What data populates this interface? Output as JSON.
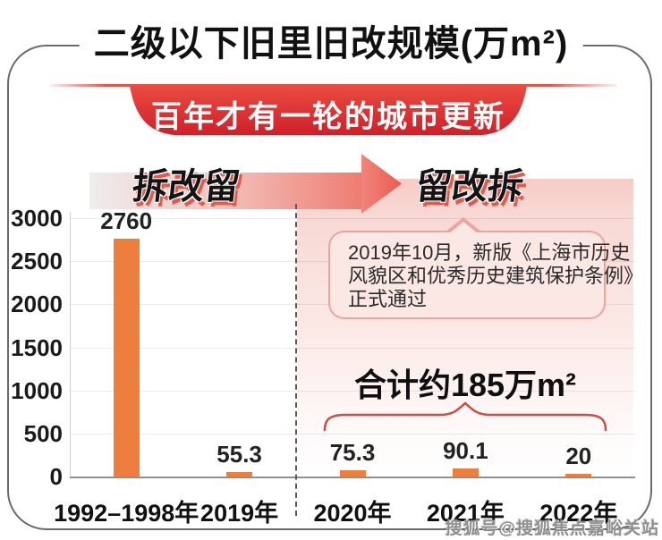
{
  "title": "二级以下旧里旧改规模(万m²)",
  "banner": "百年才有一轮的城市更新",
  "eras": {
    "left": "拆改留",
    "right": "留改拆"
  },
  "annotation": {
    "lines": [
      "2019年10月，新版《上海市历史",
      "风貌区和优秀历史建筑保护条例》",
      "正式通过"
    ]
  },
  "total_label": "合计约185万m²",
  "watermark": "搜狐号@搜狐焦点嘉峪关站",
  "colors": {
    "bar": "#EE7E3E",
    "banner_red_top": "#EA4B42",
    "banner_red_bottom": "#CF2028",
    "accent_red": "#D9453C",
    "pink_background": "#F6CCC7"
  },
  "chart_data": {
    "type": "bar",
    "title": "二级以下旧里旧改规模(万m²)",
    "xlabel": "",
    "ylabel": "万m²",
    "categories": [
      "1992–1998年",
      "2019年",
      "2020年",
      "2021年",
      "2022年"
    ],
    "values": [
      2760,
      55.3,
      75.3,
      90.1,
      20
    ],
    "value_labels": [
      "2760",
      "55.3",
      "75.3",
      "90.1",
      "20"
    ],
    "ylim": [
      0,
      3000
    ],
    "yticks": [
      0,
      500,
      1000,
      1500,
      2000,
      2500,
      3000
    ],
    "grid": true,
    "legend": false,
    "divider_between": [
      "2019年",
      "2020年"
    ]
  }
}
